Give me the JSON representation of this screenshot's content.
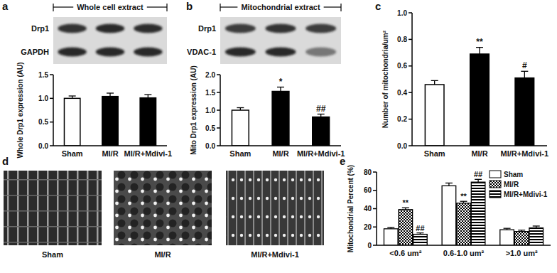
{
  "chart_data": [
    {
      "panel": "a",
      "type": "bar",
      "blot": {
        "title": "Whole cell extract",
        "bands": [
          "Drp1",
          "GAPDH"
        ]
      },
      "y_label": "Whole Drp1 expression (AU)",
      "categories": [
        "Sham",
        "MI/R",
        "MI/R+Mdivi-1"
      ],
      "values": [
        1.0,
        1.04,
        1.01
      ],
      "errors": [
        0.05,
        0.07,
        0.07
      ],
      "colors": [
        "#ffffff",
        "#000000",
        "#000000"
      ],
      "ylim": [
        0,
        1.5
      ],
      "yticks": [
        {
          "value": 0,
          "label": "0.0"
        },
        0.5,
        {
          "value": 1,
          "label": "1.0"
        },
        1.5
      ]
    },
    {
      "panel": "b",
      "type": "bar",
      "blot": {
        "title": "Mitochondrial extract",
        "bands": [
          "Drp1",
          "VDAC-1"
        ]
      },
      "y_label": "Mito Drp1 expression (AU)",
      "categories": [
        "Sham",
        "MI/R",
        "MI/R+Mdivi-1"
      ],
      "values": [
        1.0,
        1.53,
        0.81
      ],
      "errors": [
        0.07,
        0.12,
        0.08
      ],
      "annotations": [
        null,
        "*",
        "##"
      ],
      "colors": [
        "#ffffff",
        "#000000",
        "#000000"
      ],
      "ylim": [
        0,
        2
      ],
      "yticks": [
        {
          "value": 0,
          "label": "0.0"
        },
        0.5,
        {
          "value": 1,
          "label": "1.0"
        },
        1.5,
        {
          "value": 2,
          "label": "2.0"
        }
      ]
    },
    {
      "panel": "c",
      "type": "bar",
      "y_label": "Number of mitochondria/um²",
      "categories": [
        "Sham",
        "MI/R",
        "MI/R+Mdivi-1"
      ],
      "values": [
        0.46,
        0.69,
        0.51
      ],
      "errors": [
        0.03,
        0.05,
        0.05
      ],
      "annotations": [
        null,
        "**",
        "#"
      ],
      "colors": [
        "#ffffff",
        "#000000",
        "#000000"
      ],
      "ylim": [
        0,
        1
      ],
      "yticks": [
        {
          "value": 0,
          "label": "0.0"
        },
        0.2,
        0.4,
        0.6,
        0.8,
        {
          "value": 1,
          "label": "1.0"
        }
      ]
    },
    {
      "panel": "d",
      "type": "image",
      "labels": [
        "Sham",
        "MI/R",
        "MI/R+Mdivi-1"
      ]
    },
    {
      "panel": "e",
      "type": "bar",
      "y_label": "Mitochondrial Percent (%)",
      "categories": [
        "<0.6 um²",
        "0.6-1.0 um²",
        ">1.0 um²"
      ],
      "series": [
        {
          "name": "Sham",
          "color": "#ffffff",
          "values": [
            18,
            65,
            17
          ],
          "errors": [
            1.5,
            3,
            1.5
          ]
        },
        {
          "name": "MI/R",
          "color": "#000000",
          "values": [
            39,
            46,
            15
          ],
          "errors": [
            2,
            2,
            1.5
          ],
          "annotations": [
            "**",
            "**",
            null
          ]
        },
        {
          "name": "MI/R+Mdivi-1",
          "color": "#000000",
          "values": [
            12,
            69,
            19
          ],
          "errors": [
            1.5,
            3,
            2
          ],
          "annotations": [
            "##",
            "##",
            null
          ]
        }
      ],
      "ylim": [
        0,
        80
      ],
      "yticks": [
        0,
        20,
        40,
        60,
        80
      ],
      "legend": "upper right"
    }
  ]
}
